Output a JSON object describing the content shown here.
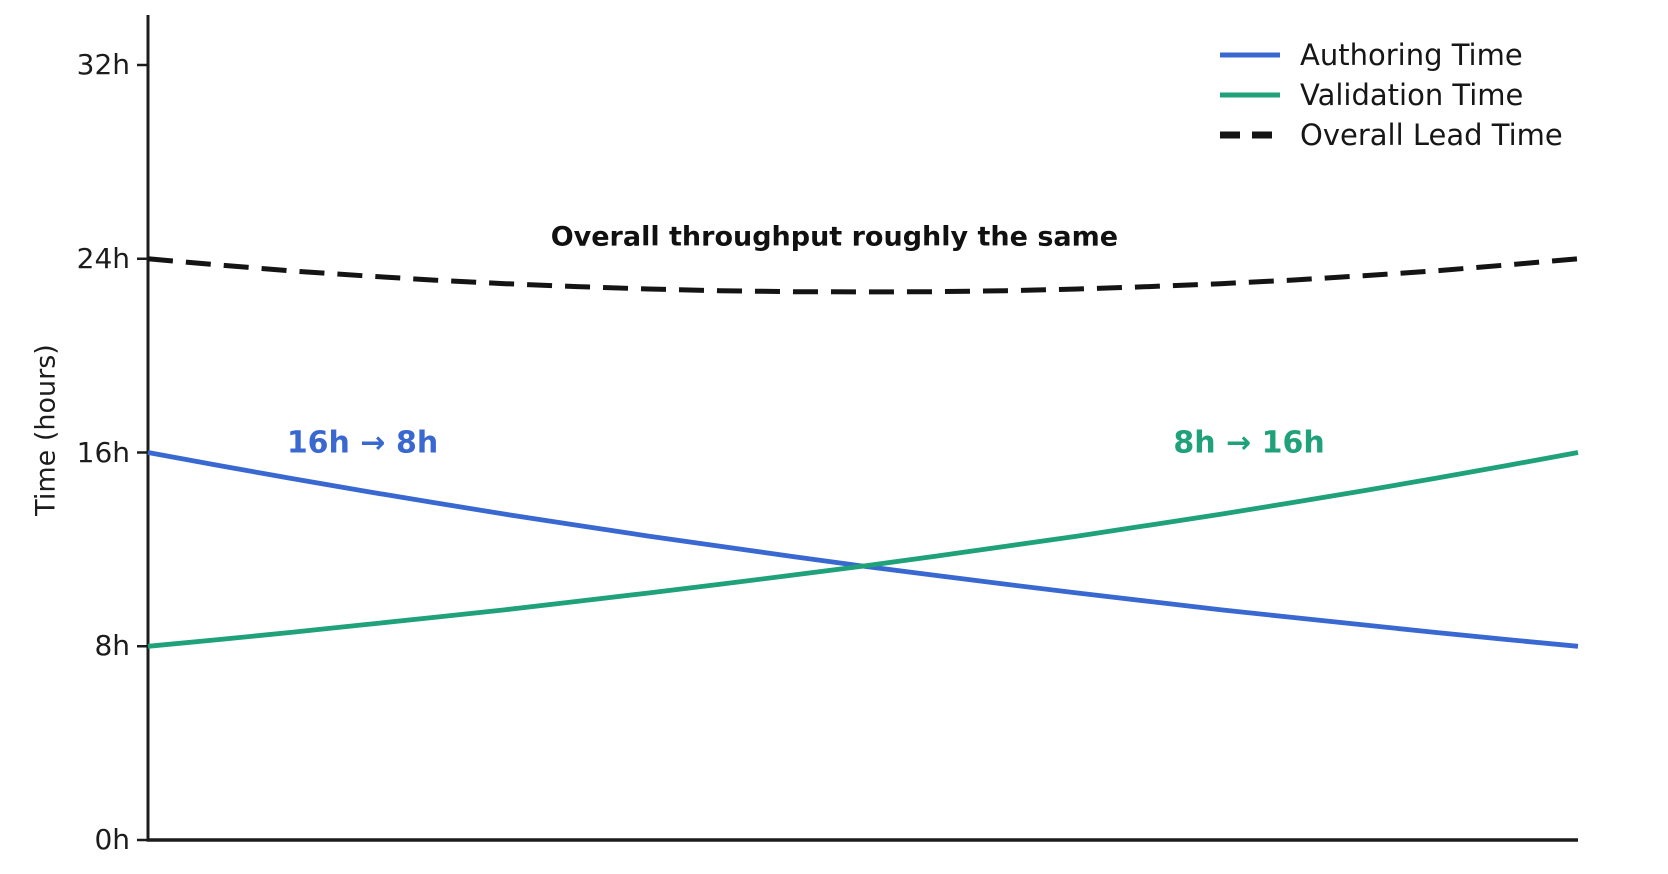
{
  "figure": {
    "background_color": "#ffffff"
  },
  "chart_data": {
    "type": "line",
    "title": "",
    "xlabel": "",
    "ylabel": "Time (hours)",
    "xlim": [
      0,
      1
    ],
    "ylim": [
      0,
      34
    ],
    "x_ticks_visible": false,
    "grid": false,
    "axis_color": "#1c1c1c",
    "yticks": [
      {
        "value": 0,
        "label": "0h"
      },
      {
        "value": 8,
        "label": "8h"
      },
      {
        "value": 16,
        "label": "16h"
      },
      {
        "value": 24,
        "label": "24h"
      },
      {
        "value": 32,
        "label": "32h"
      }
    ],
    "x": [
      0,
      0.05,
      0.1,
      0.15,
      0.2,
      0.25,
      0.3,
      0.35,
      0.4,
      0.45,
      0.5,
      0.55,
      0.6,
      0.65,
      0.7,
      0.75,
      0.8,
      0.85,
      0.9,
      0.95,
      1
    ],
    "series": [
      {
        "name": "Authoring Time",
        "color": "#3968D1",
        "style": "solid",
        "start_value_hours": 16,
        "end_value_hours": 8,
        "values": [
          16.0,
          15.46,
          14.93,
          14.42,
          13.93,
          13.45,
          13.0,
          12.55,
          12.13,
          11.71,
          11.31,
          10.93,
          10.56,
          10.2,
          9.85,
          9.51,
          9.19,
          8.88,
          8.57,
          8.28,
          8.0
        ]
      },
      {
        "name": "Validation Time",
        "color": "#1FA179",
        "style": "solid",
        "start_value_hours": 8,
        "end_value_hours": 16,
        "values": [
          8.0,
          8.28,
          8.57,
          8.88,
          9.19,
          9.51,
          9.85,
          10.2,
          10.56,
          10.93,
          11.31,
          11.71,
          12.13,
          12.55,
          13.0,
          13.45,
          13.93,
          14.42,
          14.93,
          15.46,
          16.0
        ]
      },
      {
        "name": "Overall Lead Time",
        "color": "#141414",
        "style": "dashed",
        "start_value_hours": 24,
        "end_value_hours": 24,
        "values": [
          24.0,
          23.74,
          23.5,
          23.3,
          23.12,
          22.97,
          22.85,
          22.75,
          22.68,
          22.64,
          22.63,
          22.64,
          22.68,
          22.75,
          22.85,
          22.97,
          23.12,
          23.3,
          23.5,
          23.74,
          24.0
        ]
      }
    ],
    "annotations": [
      {
        "id": "throughput-note",
        "text": "Overall throughput roughly the same",
        "color": "#111111",
        "x": 0.48,
        "hours": 24.9,
        "kind": "note"
      },
      {
        "id": "authoring-change",
        "text": "16h → 8h",
        "color": "#3968D1",
        "x": 0.15,
        "hours": 16.4,
        "kind": "delta"
      },
      {
        "id": "validation-change",
        "text": "8h → 16h",
        "color": "#1FA179",
        "x": 0.77,
        "hours": 16.4,
        "kind": "delta"
      }
    ],
    "legend_position": "upper right"
  },
  "legend": {
    "items": [
      {
        "label": "Authoring Time"
      },
      {
        "label": "Validation Time"
      },
      {
        "label": "Overall Lead Time"
      }
    ]
  }
}
